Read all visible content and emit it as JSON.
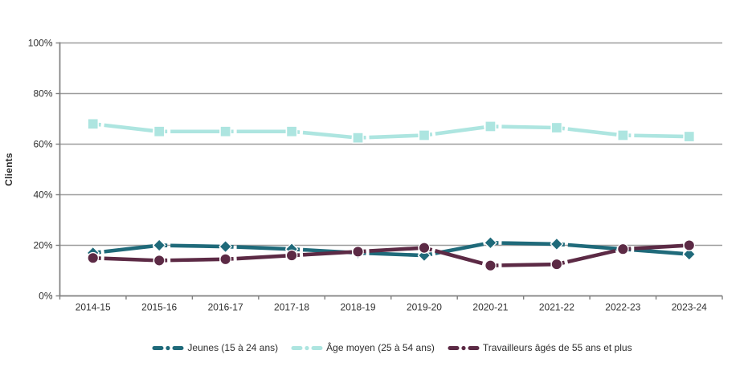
{
  "chart_data": {
    "type": "line",
    "title": "",
    "xlabel": "",
    "ylabel": "Clients",
    "ylim": [
      0,
      100
    ],
    "ytick_step": 20,
    "ytick_labels": [
      "0%",
      "20%",
      "40%",
      "60%",
      "80%",
      "100%"
    ],
    "grid": true,
    "line_style": "long-dash-dot",
    "legend_position": "bottom-center",
    "axis_color": "#7f7f7f",
    "gridline_color": "#9c9c9c",
    "tick_label_color": "#2e2e2e",
    "categories": [
      "2014-15",
      "2015-16",
      "2016-17",
      "2017-18",
      "2018-19",
      "2019-20",
      "2020-21",
      "2021-22",
      "2022-23",
      "2023-24"
    ],
    "series": [
      {
        "name": "Jeunes (15 à 24 ans)",
        "color": "#1f6a7a",
        "marker": "diamond",
        "values": [
          17,
          20,
          19.5,
          18.5,
          17,
          16,
          21,
          20.5,
          18.5,
          16.5
        ]
      },
      {
        "name": "Âge moyen (25 à 54 ans)",
        "color": "#ade5e0",
        "marker": "square",
        "values": [
          68,
          65,
          65,
          65,
          62.5,
          63.5,
          67,
          66.5,
          63.5,
          63
        ]
      },
      {
        "name": "Travailleurs âgés de 55 ans et plus",
        "color": "#5c2a45",
        "marker": "circle",
        "values": [
          15,
          14,
          14.5,
          16,
          17.5,
          19,
          12,
          12.5,
          18.5,
          20
        ]
      }
    ]
  }
}
